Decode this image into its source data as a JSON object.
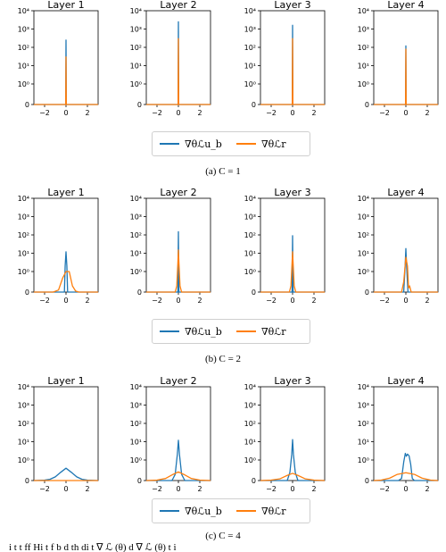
{
  "colors": {
    "grad_ub": "#1f77b4",
    "grad_r": "#ff7f0e"
  },
  "legend": {
    "grad_ub": "∇θℒu_b",
    "grad_r": "∇θℒr"
  },
  "footer_text": "i  t  t   ff  Hi t      f b  d    th  di  t  ∇ ℒ  (θ)  d ∇ ℒ  (θ)     t i  ",
  "chart_data": [
    {
      "group": "(a) C = 1",
      "panel": "Layer 1",
      "type": "line",
      "xlim": [
        -3,
        3
      ],
      "yscale": "symlog",
      "yticks": [
        "0",
        "10⁰",
        "10¹",
        "10²",
        "10³",
        "10⁴"
      ],
      "xticks": [
        "−2",
        "0",
        "2"
      ],
      "series": [
        {
          "name": "∇θℒu_b",
          "x": [
            -3,
            -0.03,
            0,
            0.03,
            3
          ],
          "y": [
            0,
            0,
            250,
            0,
            0
          ]
        },
        {
          "name": "∇θℒr",
          "x": [
            -3,
            -0.03,
            0,
            0.03,
            3
          ],
          "y": [
            0,
            0,
            30,
            0,
            0
          ]
        }
      ]
    },
    {
      "group": "(a) C = 1",
      "panel": "Layer 2",
      "type": "line",
      "xlim": [
        -3,
        3
      ],
      "yscale": "symlog",
      "yticks": [
        "0",
        "10⁰",
        "10¹",
        "10²",
        "10³",
        "10⁴"
      ],
      "xticks": [
        "−2",
        "0",
        "2"
      ],
      "series": [
        {
          "name": "∇θℒu_b",
          "x": [
            -3,
            -0.03,
            0,
            0.03,
            3
          ],
          "y": [
            0,
            0,
            2500,
            0,
            0
          ]
        },
        {
          "name": "∇θℒr",
          "x": [
            -3,
            -0.03,
            0,
            0.03,
            3
          ],
          "y": [
            0,
            0,
            300,
            0,
            0
          ]
        }
      ]
    },
    {
      "group": "(a) C = 1",
      "panel": "Layer 3",
      "type": "line",
      "xlim": [
        -3,
        3
      ],
      "yscale": "symlog",
      "yticks": [
        "0",
        "10⁰",
        "10¹",
        "10²",
        "10³",
        "10⁴"
      ],
      "xticks": [
        "−2",
        "0",
        "2"
      ],
      "series": [
        {
          "name": "∇θℒu_b",
          "x": [
            -3,
            -0.03,
            0,
            0.03,
            3
          ],
          "y": [
            0,
            0,
            1600,
            0,
            0
          ]
        },
        {
          "name": "∇θℒr",
          "x": [
            -3,
            -0.03,
            0,
            0.03,
            3
          ],
          "y": [
            0,
            0,
            300,
            0,
            0
          ]
        }
      ]
    },
    {
      "group": "(a) C = 1",
      "panel": "Layer 4",
      "type": "line",
      "xlim": [
        -3,
        3
      ],
      "yscale": "symlog",
      "yticks": [
        "0",
        "10⁰",
        "10¹",
        "10²",
        "10³",
        "10⁴"
      ],
      "xticks": [
        "−2",
        "0",
        "2"
      ],
      "series": [
        {
          "name": "∇θℒu_b",
          "x": [
            -3,
            -0.03,
            0,
            0.03,
            3
          ],
          "y": [
            0,
            0,
            120,
            0,
            0
          ]
        },
        {
          "name": "∇θℒr",
          "x": [
            -3,
            -0.03,
            0,
            0.03,
            3
          ],
          "y": [
            0,
            0,
            80,
            0,
            0
          ]
        }
      ]
    },
    {
      "group": "(b) C = 2",
      "panel": "Layer 1",
      "type": "line",
      "xlim": [
        -3,
        3
      ],
      "yscale": "symlog",
      "yticks": [
        "0",
        "10⁰",
        "10¹",
        "10²",
        "10³",
        "10⁴"
      ],
      "xticks": [
        "−2",
        "0",
        "2"
      ],
      "series": [
        {
          "name": "∇θℒu_b",
          "x": [
            -3,
            -0.15,
            -0.08,
            0,
            0.08,
            0.15,
            3
          ],
          "y": [
            0,
            0,
            2,
            12,
            2,
            0,
            0
          ]
        },
        {
          "name": "∇θℒr",
          "x": [
            -3,
            -1.2,
            -0.7,
            -0.3,
            0,
            0.3,
            0.6,
            0.9,
            1.2,
            3
          ],
          "y": [
            0,
            0,
            0.1,
            0.7,
            1.0,
            1.0,
            0.3,
            0.05,
            0,
            0
          ]
        }
      ]
    },
    {
      "group": "(b) C = 2",
      "panel": "Layer 2",
      "type": "line",
      "xlim": [
        -3,
        3
      ],
      "yscale": "symlog",
      "yticks": [
        "0",
        "10⁰",
        "10¹",
        "10²",
        "10³",
        "10⁴"
      ],
      "xticks": [
        "−2",
        "0",
        "2"
      ],
      "series": [
        {
          "name": "∇θℒu_b",
          "x": [
            -3,
            -0.05,
            0,
            0.05,
            3
          ],
          "y": [
            0,
            0,
            150,
            0,
            0
          ]
        },
        {
          "name": "∇θℒr",
          "x": [
            -3,
            -0.3,
            -0.15,
            -0.05,
            0,
            0.05,
            0.15,
            0.3,
            3
          ],
          "y": [
            0,
            0,
            0.3,
            3,
            15,
            3,
            0.3,
            0,
            0
          ]
        }
      ]
    },
    {
      "group": "(b) C = 2",
      "panel": "Layer 3",
      "type": "line",
      "xlim": [
        -3,
        3
      ],
      "yscale": "symlog",
      "yticks": [
        "0",
        "10⁰",
        "10¹",
        "10²",
        "10³",
        "10⁴"
      ],
      "xticks": [
        "−2",
        "0",
        "2"
      ],
      "series": [
        {
          "name": "∇θℒu_b",
          "x": [
            -3,
            -0.05,
            0,
            0.05,
            3
          ],
          "y": [
            0,
            0,
            90,
            0,
            0
          ]
        },
        {
          "name": "∇θℒr",
          "x": [
            -3,
            -0.3,
            -0.15,
            -0.05,
            0,
            0.05,
            0.15,
            0.3,
            3
          ],
          "y": [
            0,
            0,
            0.3,
            3,
            12,
            3,
            0.3,
            0,
            0
          ]
        }
      ]
    },
    {
      "group": "(b) C = 2",
      "panel": "Layer 4",
      "type": "line",
      "xlim": [
        -3,
        3
      ],
      "yscale": "symlog",
      "yticks": [
        "0",
        "10⁰",
        "10¹",
        "10²",
        "10³",
        "10⁴"
      ],
      "xticks": [
        "−2",
        "0",
        "2"
      ],
      "series": [
        {
          "name": "∇θℒu_b",
          "x": [
            -3,
            -0.2,
            -0.08,
            0,
            0.08,
            0.2,
            3
          ],
          "y": [
            0,
            0,
            1.5,
            18,
            1.5,
            0,
            0
          ]
        },
        {
          "name": "∇θℒr",
          "x": [
            -3,
            -0.4,
            -0.2,
            0,
            0.15,
            0.25,
            0.35,
            0.5,
            3
          ],
          "y": [
            0,
            0,
            0.5,
            6,
            2,
            0.2,
            0.3,
            0,
            0
          ]
        }
      ]
    },
    {
      "group": "(c) C = 4",
      "panel": "Layer 1",
      "type": "line",
      "xlim": [
        -3,
        3
      ],
      "yscale": "symlog",
      "yticks": [
        "0",
        "10⁰",
        "10¹",
        "10²",
        "10³",
        "10⁴"
      ],
      "xticks": [
        "−2",
        "0",
        "2"
      ],
      "series": [
        {
          "name": "∇θℒu_b",
          "x": [
            -3,
            -2,
            -1.5,
            -1,
            -0.5,
            0,
            0.5,
            1,
            1.5,
            2,
            3
          ],
          "y": [
            0,
            0.02,
            0.06,
            0.18,
            0.4,
            0.6,
            0.4,
            0.18,
            0.06,
            0.02,
            0
          ]
        },
        {
          "name": "∇θℒr",
          "x": [
            -3,
            3
          ],
          "y": [
            0,
            0
          ]
        }
      ]
    },
    {
      "group": "(c) C = 4",
      "panel": "Layer 2",
      "type": "line",
      "xlim": [
        -3,
        3
      ],
      "yscale": "symlog",
      "yticks": [
        "0",
        "10⁰",
        "10¹",
        "10²",
        "10³",
        "10⁴"
      ],
      "xticks": [
        "−2",
        "0",
        "2"
      ],
      "series": [
        {
          "name": "∇θℒu_b",
          "x": [
            -3,
            -0.6,
            -0.3,
            -0.1,
            0,
            0.1,
            0.3,
            0.6,
            3
          ],
          "y": [
            0,
            0,
            0.3,
            2,
            12,
            2,
            0.3,
            0,
            0
          ]
        },
        {
          "name": "∇θℒr",
          "x": [
            -3,
            -2,
            -1.2,
            -0.5,
            0,
            0.5,
            1.2,
            2,
            3
          ],
          "y": [
            0,
            0.02,
            0.1,
            0.3,
            0.42,
            0.3,
            0.1,
            0.02,
            0
          ]
        }
      ]
    },
    {
      "group": "(c) C = 4",
      "panel": "Layer 3",
      "type": "line",
      "xlim": [
        -3,
        3
      ],
      "yscale": "symlog",
      "yticks": [
        "0",
        "10⁰",
        "10¹",
        "10²",
        "10³",
        "10⁴"
      ],
      "xticks": [
        "−2",
        "0",
        "2"
      ],
      "series": [
        {
          "name": "∇θℒu_b",
          "x": [
            -3,
            -0.5,
            -0.25,
            -0.08,
            0,
            0.08,
            0.25,
            0.5,
            3
          ],
          "y": [
            0,
            0,
            0.4,
            2,
            13,
            2,
            0.4,
            0,
            0
          ]
        },
        {
          "name": "∇θℒr",
          "x": [
            -3,
            -2,
            -1.2,
            -0.5,
            0,
            0.5,
            1.2,
            2,
            3
          ],
          "y": [
            0,
            0.02,
            0.08,
            0.25,
            0.35,
            0.25,
            0.08,
            0.02,
            0
          ]
        }
      ]
    },
    {
      "group": "(c) C = 4",
      "panel": "Layer 4",
      "type": "line",
      "xlim": [
        -3,
        3
      ],
      "yscale": "symlog",
      "yticks": [
        "0",
        "10⁰",
        "10¹",
        "10²",
        "10³",
        "10⁴"
      ],
      "xticks": [
        "−2",
        "0",
        "2"
      ],
      "series": [
        {
          "name": "∇θℒu_b",
          "x": [
            -3,
            -0.7,
            -0.4,
            -0.2,
            -0.05,
            0.05,
            0.15,
            0.3,
            0.45,
            0.6,
            0.8,
            3
          ],
          "y": [
            0,
            0,
            0.1,
            0.9,
            2.3,
            1.6,
            2.1,
            1.7,
            0.8,
            0.1,
            0,
            0
          ]
        },
        {
          "name": "∇θℒr",
          "x": [
            -3,
            -2.3,
            -1.5,
            -0.8,
            0,
            0.8,
            1.5,
            2.3,
            3
          ],
          "y": [
            0,
            0.02,
            0.12,
            0.3,
            0.38,
            0.3,
            0.12,
            0.02,
            0
          ]
        }
      ]
    }
  ],
  "captions": [
    "(a) C = 1",
    "(b) C = 2",
    "(c) C = 4"
  ]
}
